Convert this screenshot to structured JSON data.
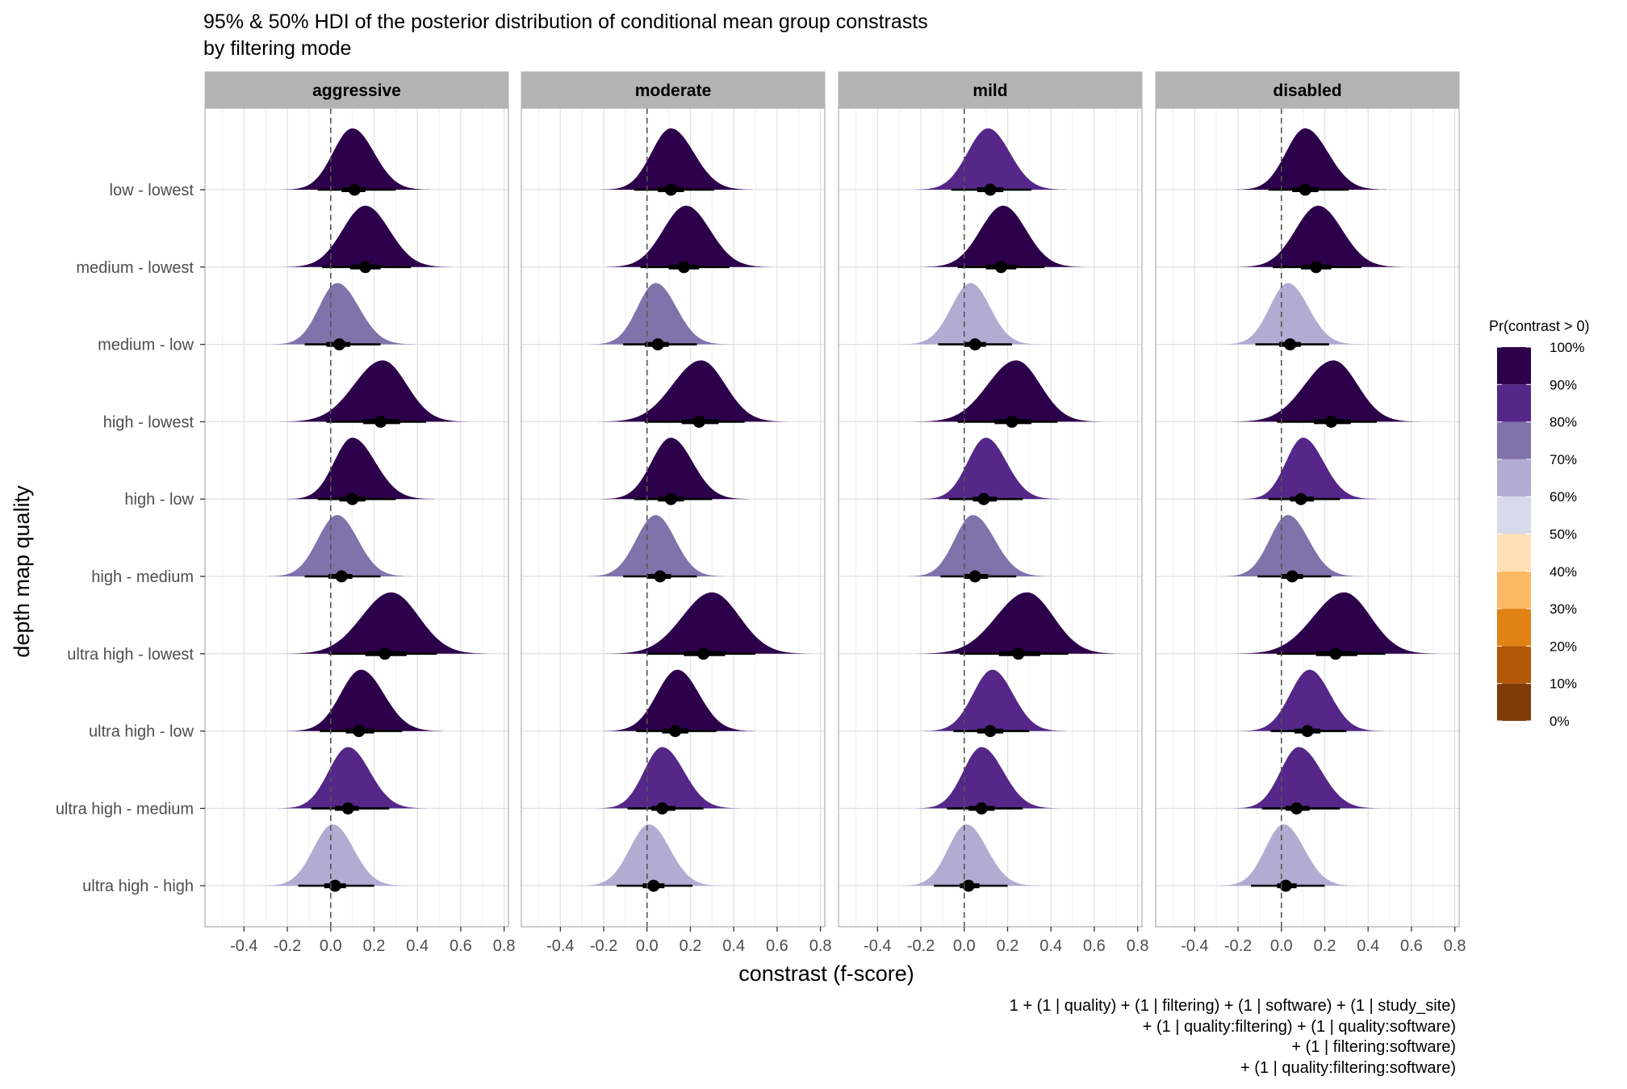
{
  "chart_data": {
    "type": "halfeye",
    "title_line1": "95% & 50% HDI of the posterior distribution of conditional mean group constrasts",
    "title_line2": "by filtering mode",
    "xlabel": "constrast (f-score)",
    "ylabel": "depth map quality",
    "xlim": [
      -0.58,
      0.82
    ],
    "x_ticks": [
      -0.4,
      -0.2,
      0.0,
      0.2,
      0.4,
      0.6,
      0.8
    ],
    "x_tick_labels": [
      "-0.4",
      "-0.2",
      "0.0",
      "0.2",
      "0.4",
      "0.6",
      "0.8"
    ],
    "reference_line_x": 0,
    "grid": true,
    "panels": [
      "aggressive",
      "moderate",
      "mild",
      "disabled"
    ],
    "categories": [
      "low - lowest",
      "medium - lowest",
      "medium - low",
      "high - lowest",
      "high - low",
      "high - medium",
      "ultra high - lowest",
      "ultra high - low",
      "ultra high - medium",
      "ultra high - high"
    ],
    "series": [
      {
        "name": "aggressive",
        "median": [
          0.11,
          0.16,
          0.04,
          0.23,
          0.1,
          0.05,
          0.25,
          0.13,
          0.08,
          0.02
        ],
        "hdi50": [
          [
            0.05,
            0.16
          ],
          [
            0.09,
            0.23
          ],
          [
            -0.02,
            0.09
          ],
          [
            0.15,
            0.32
          ],
          [
            0.04,
            0.16
          ],
          [
            -0.01,
            0.1
          ],
          [
            0.16,
            0.35
          ],
          [
            0.07,
            0.2
          ],
          [
            0.02,
            0.13
          ],
          [
            -0.03,
            0.07
          ]
        ],
        "hdi95": [
          [
            -0.06,
            0.3
          ],
          [
            -0.04,
            0.37
          ],
          [
            -0.12,
            0.23
          ],
          [
            -0.02,
            0.44
          ],
          [
            -0.06,
            0.3
          ],
          [
            -0.12,
            0.23
          ],
          [
            -0.01,
            0.49
          ],
          [
            -0.05,
            0.33
          ],
          [
            -0.09,
            0.27
          ],
          [
            -0.15,
            0.2
          ]
        ],
        "peak": [
          0.1,
          0.16,
          0.03,
          0.24,
          0.1,
          0.03,
          0.28,
          0.14,
          0.08,
          0.01
        ],
        "pr_gt_0": [
          0.92,
          0.96,
          0.73,
          0.98,
          0.9,
          0.76,
          0.97,
          0.91,
          0.86,
          0.66
        ]
      },
      {
        "name": "moderate",
        "median": [
          0.11,
          0.17,
          0.05,
          0.24,
          0.11,
          0.06,
          0.26,
          0.13,
          0.07,
          0.03
        ],
        "hdi50": [
          [
            0.05,
            0.17
          ],
          [
            0.1,
            0.24
          ],
          [
            -0.01,
            0.1
          ],
          [
            0.16,
            0.33
          ],
          [
            0.05,
            0.17
          ],
          [
            0.0,
            0.11
          ],
          [
            0.17,
            0.36
          ],
          [
            0.07,
            0.19
          ],
          [
            0.02,
            0.13
          ],
          [
            -0.02,
            0.08
          ]
        ],
        "hdi95": [
          [
            -0.06,
            0.31
          ],
          [
            -0.03,
            0.38
          ],
          [
            -0.11,
            0.23
          ],
          [
            -0.01,
            0.45
          ],
          [
            -0.06,
            0.3
          ],
          [
            -0.11,
            0.23
          ],
          [
            0.0,
            0.5
          ],
          [
            -0.05,
            0.32
          ],
          [
            -0.09,
            0.26
          ],
          [
            -0.14,
            0.21
          ]
        ],
        "peak": [
          0.11,
          0.18,
          0.04,
          0.25,
          0.11,
          0.04,
          0.3,
          0.14,
          0.07,
          0.01
        ],
        "pr_gt_0": [
          0.91,
          0.97,
          0.74,
          0.98,
          0.91,
          0.76,
          0.98,
          0.93,
          0.87,
          0.68
        ]
      },
      {
        "name": "mild",
        "median": [
          0.12,
          0.17,
          0.05,
          0.22,
          0.09,
          0.05,
          0.25,
          0.12,
          0.08,
          0.02
        ],
        "hdi50": [
          [
            0.06,
            0.18
          ],
          [
            0.1,
            0.24
          ],
          [
            0.0,
            0.1
          ],
          [
            0.14,
            0.31
          ],
          [
            0.04,
            0.15
          ],
          [
            0.0,
            0.11
          ],
          [
            0.16,
            0.35
          ],
          [
            0.06,
            0.18
          ],
          [
            0.02,
            0.14
          ],
          [
            -0.02,
            0.07
          ]
        ],
        "hdi95": [
          [
            -0.06,
            0.31
          ],
          [
            -0.03,
            0.37
          ],
          [
            -0.12,
            0.22
          ],
          [
            -0.03,
            0.43
          ],
          [
            -0.07,
            0.27
          ],
          [
            -0.11,
            0.24
          ],
          [
            -0.02,
            0.48
          ],
          [
            -0.05,
            0.3
          ],
          [
            -0.08,
            0.27
          ],
          [
            -0.14,
            0.2
          ]
        ],
        "peak": [
          0.11,
          0.18,
          0.03,
          0.24,
          0.1,
          0.04,
          0.29,
          0.13,
          0.08,
          0.01
        ],
        "pr_gt_0": [
          0.89,
          0.96,
          0.65,
          0.97,
          0.88,
          0.72,
          0.97,
          0.89,
          0.86,
          0.62
        ]
      },
      {
        "name": "disabled",
        "median": [
          0.11,
          0.16,
          0.04,
          0.23,
          0.09,
          0.05,
          0.25,
          0.12,
          0.07,
          0.02
        ],
        "hdi50": [
          [
            0.05,
            0.17
          ],
          [
            0.09,
            0.23
          ],
          [
            -0.01,
            0.09
          ],
          [
            0.15,
            0.32
          ],
          [
            0.04,
            0.15
          ],
          [
            0.0,
            0.1
          ],
          [
            0.16,
            0.35
          ],
          [
            0.06,
            0.18
          ],
          [
            0.02,
            0.13
          ],
          [
            -0.02,
            0.07
          ]
        ],
        "hdi95": [
          [
            -0.06,
            0.31
          ],
          [
            -0.04,
            0.37
          ],
          [
            -0.12,
            0.22
          ],
          [
            -0.02,
            0.44
          ],
          [
            -0.06,
            0.27
          ],
          [
            -0.11,
            0.23
          ],
          [
            -0.02,
            0.48
          ],
          [
            -0.05,
            0.3
          ],
          [
            -0.09,
            0.27
          ],
          [
            -0.14,
            0.2
          ]
        ],
        "peak": [
          0.11,
          0.17,
          0.03,
          0.24,
          0.1,
          0.03,
          0.29,
          0.13,
          0.08,
          0.01
        ],
        "pr_gt_0": [
          0.9,
          0.96,
          0.66,
          0.97,
          0.89,
          0.74,
          0.97,
          0.89,
          0.87,
          0.63
        ]
      }
    ],
    "legend": {
      "title": "Pr(contrast > 0)",
      "placement": "right",
      "labels": [
        "100%",
        "90%",
        "80%",
        "70%",
        "60%",
        "50%",
        "40%",
        "30%",
        "20%",
        "10%",
        "0%"
      ],
      "colors_top_to_bottom": [
        "#2d004b",
        "#542788",
        "#8073ac",
        "#b2abd2",
        "#d8daeb",
        "#fee0b6",
        "#fdb863",
        "#e08214",
        "#b35806",
        "#7f3b08"
      ]
    },
    "formula_lines": [
      "1 + (1 | quality) + (1 | filtering) + (1 | software) + (1 | study_site)",
      "+ (1 | quality:filtering) + (1 | quality:software)",
      "+ (1 | filtering:software)",
      "+ (1 | quality:filtering:software)"
    ]
  }
}
